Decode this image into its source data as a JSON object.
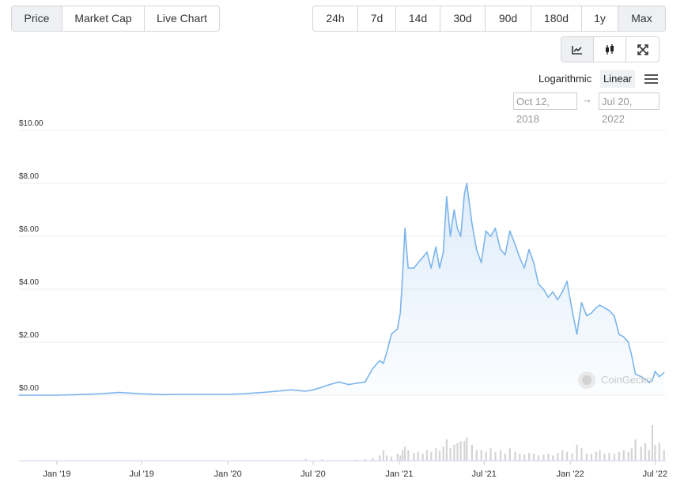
{
  "tabs": [
    {
      "label": "Price",
      "active": true
    },
    {
      "label": "Market Cap",
      "active": false
    },
    {
      "label": "Live Chart",
      "active": false
    }
  ],
  "ranges": [
    {
      "label": "24h",
      "active": false
    },
    {
      "label": "7d",
      "active": false
    },
    {
      "label": "14d",
      "active": false
    },
    {
      "label": "30d",
      "active": false
    },
    {
      "label": "90d",
      "active": false
    },
    {
      "label": "180d",
      "active": false
    },
    {
      "label": "1y",
      "active": false
    },
    {
      "label": "Max",
      "active": true
    }
  ],
  "views": [
    {
      "icon": "line-chart-icon",
      "active": true
    },
    {
      "icon": "candlestick-icon",
      "active": false
    },
    {
      "icon": "fullscreen-icon",
      "active": false
    }
  ],
  "scale": {
    "log_label": "Logarithmic",
    "linear_label": "Linear",
    "selected": "linear",
    "menu_icon": "hamburger-menu-icon"
  },
  "date_range": {
    "from": "Oct 12, 2018",
    "arrow": "→",
    "to": "Jul 20, 2022"
  },
  "watermark": "CoinGecko",
  "chart_data": {
    "type": "area",
    "series": [
      {
        "x": [
          "2018-10-12",
          "2018-11-15",
          "2019-01-01",
          "2019-02-15",
          "2019-04-01",
          "2019-05-15",
          "2019-07-01",
          "2019-08-15",
          "2019-10-01",
          "2019-11-15",
          "2020-01-01",
          "2020-02-01",
          "2020-03-15",
          "2020-04-15",
          "2020-05-15",
          "2020-06-15",
          "2020-07-01",
          "2020-07-20",
          "2020-08-05",
          "2020-08-25",
          "2020-09-15",
          "2020-10-01",
          "2020-10-20",
          "2020-11-05",
          "2020-11-20",
          "2020-11-28",
          "2020-12-05",
          "2020-12-15",
          "2020-12-28",
          "2021-01-03",
          "2021-01-08",
          "2021-01-13",
          "2021-01-20",
          "2021-02-01",
          "2021-02-10",
          "2021-02-20",
          "2021-03-01",
          "2021-03-10",
          "2021-03-20",
          "2021-03-28",
          "2021-04-05",
          "2021-04-12",
          "2021-04-20",
          "2021-04-28",
          "2021-05-05",
          "2021-05-12",
          "2021-05-20",
          "2021-05-25",
          "2021-06-05",
          "2021-06-15",
          "2021-06-25",
          "2021-07-05",
          "2021-07-15",
          "2021-07-25",
          "2021-08-05",
          "2021-08-15",
          "2021-08-25",
          "2021-09-05",
          "2021-09-15",
          "2021-09-25",
          "2021-10-05",
          "2021-10-15",
          "2021-10-25",
          "2021-11-05",
          "2021-11-15",
          "2021-11-25",
          "2021-12-05",
          "2021-12-15",
          "2021-12-25",
          "2022-01-05",
          "2022-01-15",
          "2022-01-25",
          "2022-02-05",
          "2022-02-15",
          "2022-02-25",
          "2022-03-05",
          "2022-03-15",
          "2022-03-25",
          "2022-04-05",
          "2022-04-15",
          "2022-04-25",
          "2022-05-05",
          "2022-05-12",
          "2022-05-20",
          "2022-06-01",
          "2022-06-10",
          "2022-06-18",
          "2022-06-25",
          "2022-07-01",
          "2022-07-10",
          "2022-07-20"
        ],
        "values": [
          0.0,
          0.0,
          0.0,
          0.02,
          0.05,
          0.1,
          0.05,
          0.02,
          0.03,
          0.03,
          0.03,
          0.05,
          0.1,
          0.15,
          0.2,
          0.15,
          0.2,
          0.3,
          0.4,
          0.5,
          0.4,
          0.45,
          0.5,
          1.0,
          1.3,
          1.2,
          1.6,
          2.3,
          2.5,
          3.1,
          4.5,
          6.3,
          4.8,
          4.8,
          5.0,
          5.2,
          5.4,
          4.8,
          5.6,
          4.8,
          5.4,
          7.5,
          6.0,
          7.0,
          6.3,
          6.0,
          7.6,
          8.0,
          6.5,
          5.5,
          5.0,
          6.2,
          6.0,
          6.3,
          5.5,
          5.3,
          6.2,
          5.7,
          5.2,
          4.8,
          5.5,
          5.0,
          4.2,
          4.0,
          3.7,
          3.9,
          3.6,
          3.9,
          4.3,
          3.2,
          2.3,
          3.5,
          3.0,
          3.1,
          3.3,
          3.4,
          3.3,
          3.2,
          3.0,
          2.3,
          2.2,
          2.0,
          1.5,
          0.8,
          0.7,
          0.6,
          0.5,
          0.55,
          0.9,
          0.7,
          0.85
        ]
      }
    ],
    "volume_values": [
      0,
      0,
      0,
      0,
      0,
      0,
      0,
      0,
      0,
      0,
      0,
      0,
      0,
      0,
      0,
      0.05,
      0,
      0.04,
      0,
      0,
      0,
      0.03,
      0.05,
      0.08,
      0.15,
      0.3,
      0.15,
      0.12,
      0.2,
      0.15,
      0.3,
      0.4,
      0.3,
      0.22,
      0.25,
      0.2,
      0.3,
      0.25,
      0.35,
      0.28,
      0.4,
      0.6,
      0.35,
      0.45,
      0.5,
      0.55,
      0.55,
      0.65,
      0.45,
      0.3,
      0.3,
      0.25,
      0.35,
      0.25,
      0.3,
      0.2,
      0.35,
      0.25,
      0.2,
      0.18,
      0.22,
      0.2,
      0.15,
      0.18,
      0.2,
      0.15,
      0.22,
      0.3,
      0.25,
      0.2,
      0.45,
      0.35,
      0.2,
      0.2,
      0.25,
      0.3,
      0.2,
      0.22,
      0.2,
      0.25,
      0.3,
      0.25,
      0.35,
      0.6,
      0.4,
      0.5,
      0.3,
      1.0,
      0.45,
      0.5,
      0.3
    ],
    "ylim": [
      0,
      10
    ],
    "yticks": [
      "$0.00",
      "$2.00",
      "$4.00",
      "$6.00",
      "$8.00",
      "$10.00"
    ],
    "ytick_values": [
      0,
      2,
      4,
      6,
      8,
      10
    ],
    "xticks": [
      "Jan '19",
      "Jul '19",
      "Jan '20",
      "Jul '20",
      "Jan '21",
      "Jul '21",
      "Jan '22",
      "Jul '22"
    ],
    "xtick_dates": [
      "2019-01-01",
      "2019-07-01",
      "2020-01-01",
      "2020-07-01",
      "2021-01-01",
      "2021-07-01",
      "2022-01-01",
      "2022-07-01"
    ],
    "grid": true,
    "line_color": "#7cb5ec"
  }
}
